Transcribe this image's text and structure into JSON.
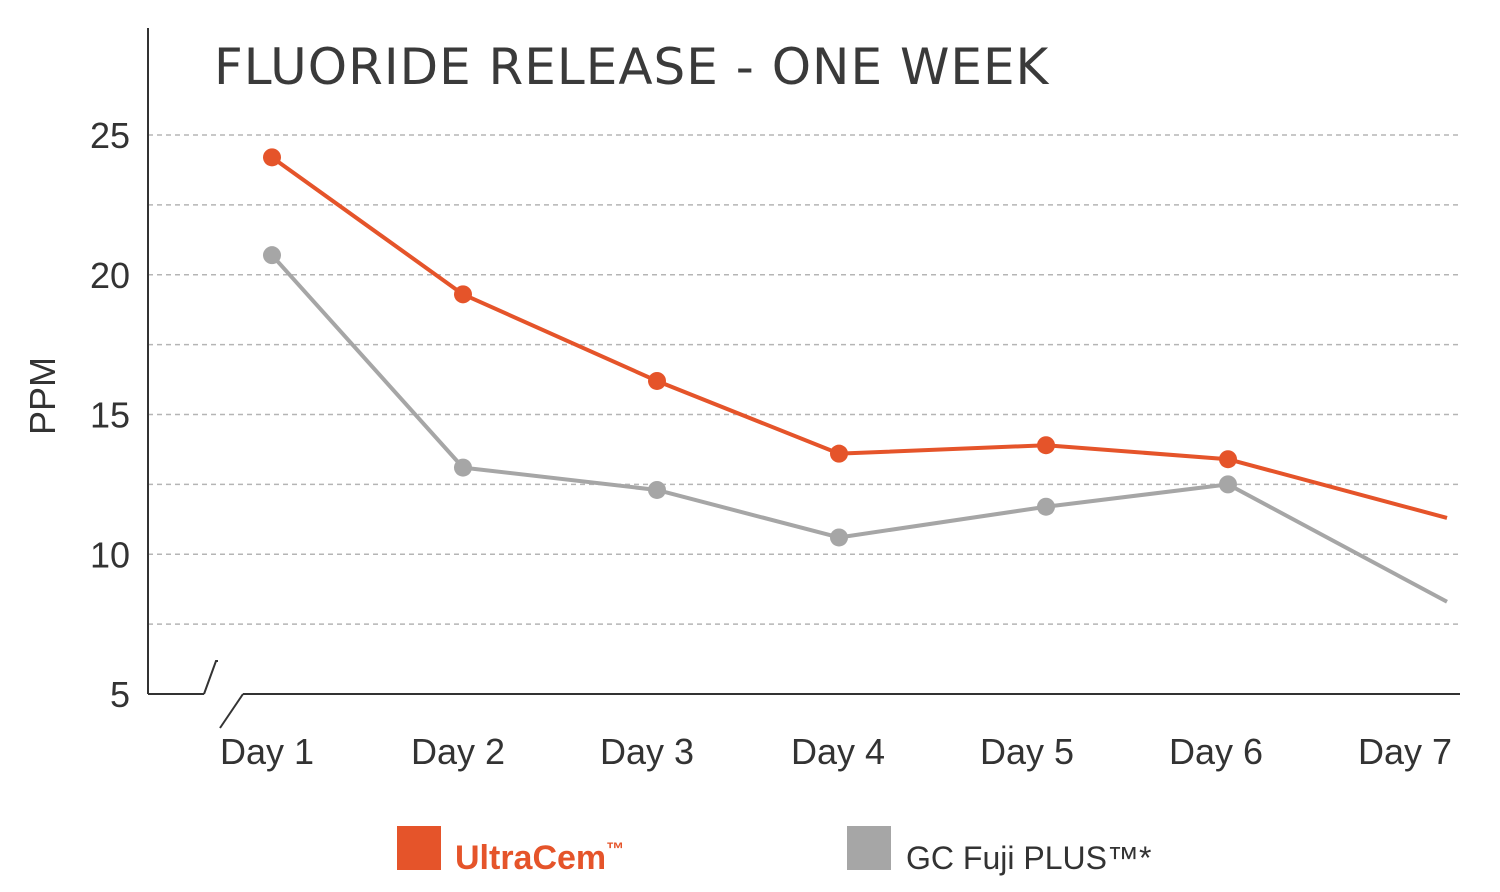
{
  "chart_data": {
    "type": "line",
    "title": "FLUORIDE RELEASE - ONE WEEK",
    "xlabel": "",
    "ylabel": "PPM",
    "categories": [
      "Day 1",
      "Day 2",
      "Day 3",
      "Day 4",
      "Day 5",
      "Day 6",
      "Day 7"
    ],
    "y_ticks": [
      "25",
      "20",
      "15",
      "10",
      "5"
    ],
    "ylim": [
      5,
      25
    ],
    "grid": true,
    "axis_break": true,
    "series": [
      {
        "name": "UltraCem™",
        "color": "#e5542a",
        "values": [
          24.2,
          19.3,
          16.2,
          13.6,
          13.9,
          13.4,
          11.3
        ],
        "markers": [
          true,
          true,
          true,
          true,
          true,
          true,
          false
        ]
      },
      {
        "name": "GC Fuji PLUS™*",
        "color": "#a6a6a6",
        "values": [
          20.7,
          13.1,
          12.3,
          10.6,
          11.7,
          12.5,
          8.3
        ],
        "markers": [
          true,
          true,
          true,
          true,
          true,
          true,
          false
        ]
      }
    ],
    "legend": {
      "placement": "bottom",
      "items": [
        {
          "label": "UltraCem",
          "suffix": "™",
          "color": "#e5542a"
        },
        {
          "label": "GC Fuji PLUS™*",
          "color": "#a6a6a6"
        }
      ]
    }
  }
}
